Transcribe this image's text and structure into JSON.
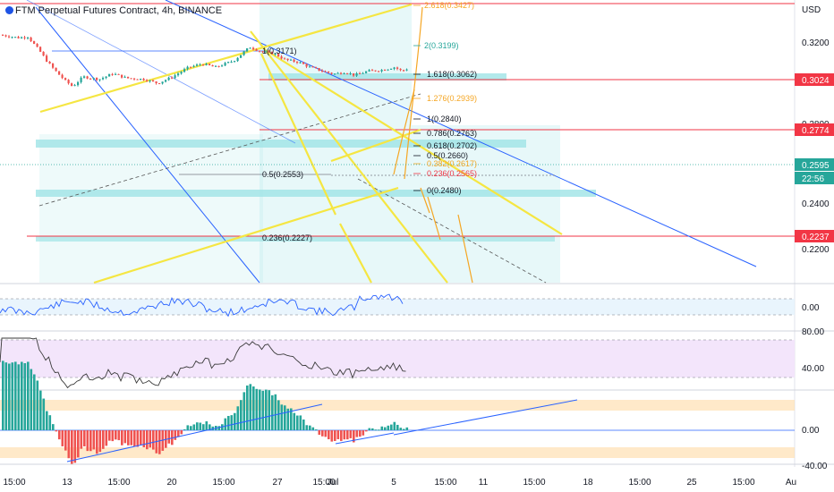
{
  "title": "FTM Perpetual Futures Contract, 4h, BINANCE",
  "currency": "USD",
  "colors": {
    "up": "#26a69a",
    "down": "#ef5350",
    "channel": "#f5e642",
    "fib_zone": "#9fe4e6",
    "trend_blue": "#2962ff",
    "resistance": "#f23645",
    "rsi_bg": "#f3e5fb",
    "rsi_line": "#7e57c2",
    "current": "#26a69a"
  },
  "price_axis": {
    "ticks": [
      "0.3200",
      "0.2800",
      "0.2400",
      "0.2200"
    ],
    "tags": [
      {
        "label": "0.3024",
        "color": "#f23645"
      },
      {
        "label": "0.2774",
        "color": "#f23645"
      },
      {
        "label": "0.2595",
        "color": "#26a69a"
      },
      {
        "label": "22:56",
        "color": "#26a69a"
      },
      {
        "label": "0.2237",
        "color": "#f23645"
      }
    ]
  },
  "time_axis": [
    "15:00",
    "13",
    "15:00",
    "20",
    "15:00",
    "27",
    "15:00",
    "Jul",
    "5",
    "15:00",
    "11",
    "15:00",
    "18",
    "15:00",
    "25",
    "15:00",
    "Au"
  ],
  "fib_levels": [
    {
      "label": "2.618(0.3427)",
      "color": "#f5a623"
    },
    {
      "label": "2(0.3199)",
      "color": "#26a69a"
    },
    {
      "label": "1.618(0.3062)",
      "color": "#131722"
    },
    {
      "label": "1.276(0.2939)",
      "color": "#f5a623"
    },
    {
      "label": "1(0.2840)",
      "color": "#131722"
    },
    {
      "label": "0.786(0.2763)",
      "color": "#131722"
    },
    {
      "label": "0.618(0.2702)",
      "color": "#131722"
    },
    {
      "label": "0.5(0.2660)",
      "color": "#131722"
    },
    {
      "label": "0.382(0.2617)",
      "color": "#f5a623"
    },
    {
      "label": "0.236(0.2565)",
      "color": "#f23645"
    },
    {
      "label": "0(0.2480)",
      "color": "#131722"
    }
  ],
  "retrace_levels": [
    {
      "label": "1(0.3171)"
    },
    {
      "label": "0.5(0.2553)"
    },
    {
      "label": "0.236(0.2227)"
    }
  ],
  "macd_axis": [
    "0.00"
  ],
  "rsi_axis": [
    "80.00",
    "40.00"
  ],
  "osc_axis": [
    "0.00",
    "-40.00"
  ]
}
